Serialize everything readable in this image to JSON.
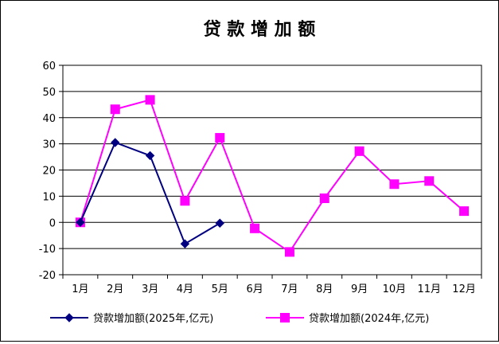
{
  "chart_data": {
    "type": "line",
    "title": "贷 款 增 加 额",
    "categories": [
      "1月",
      "2月",
      "3月",
      "4月",
      "5月",
      "6月",
      "7月",
      "8月",
      "9月",
      "10月",
      "11月",
      "12月"
    ],
    "ylim": [
      -20,
      60
    ],
    "yticks": [
      -20,
      -10,
      0,
      10,
      20,
      30,
      40,
      50,
      60
    ],
    "grid": true,
    "legend_position": "bottom",
    "series": [
      {
        "name": "贷款增加额(2025年,亿元)",
        "color": "#000080",
        "marker": "diamond",
        "values": [
          0,
          30.5,
          25.5,
          -8.2,
          -0.3,
          null,
          null,
          null,
          null,
          null,
          null,
          null
        ]
      },
      {
        "name": "贷款增加额(2024年,亿元)",
        "color": "#ff00ff",
        "marker": "square",
        "values": [
          0,
          43.2,
          46.8,
          8.2,
          32.3,
          -2.3,
          -11.3,
          9.2,
          27.2,
          14.6,
          15.8,
          4.3
        ]
      }
    ]
  }
}
